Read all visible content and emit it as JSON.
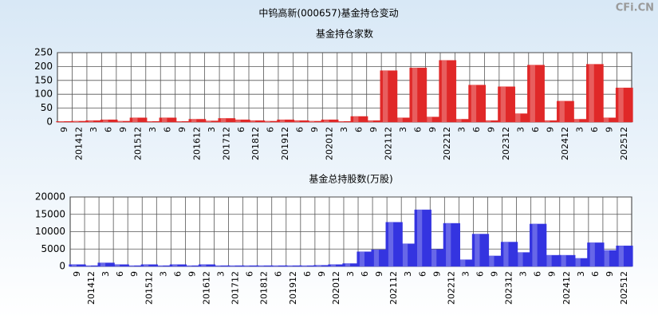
{
  "title": "中钨高新(000657)基金持仓变动",
  "watermark": "CFi.CN",
  "chart_data": [
    {
      "type": "bar",
      "title": "基金持仓家数",
      "categories": [
        "9",
        "201412",
        "3",
        "6",
        "9",
        "201512",
        "3",
        "6",
        "9",
        "201612",
        "3",
        "201712",
        "6",
        "201812",
        "6",
        "201912",
        "6",
        "9",
        "202012",
        "3",
        "6",
        "9",
        "202112",
        "3",
        "6",
        "9",
        "202212",
        "3",
        "6",
        "9",
        "202312",
        "3",
        "6",
        "9",
        "202412",
        "3",
        "6",
        "9",
        "202512"
      ],
      "series": [
        {
          "name": "基金持仓家数",
          "color": "#e02828",
          "values": [
            2,
            3,
            5,
            8,
            3,
            15,
            2,
            15,
            2,
            10,
            4,
            13,
            8,
            5,
            3,
            8,
            5,
            3,
            8,
            2,
            20,
            5,
            185,
            15,
            195,
            18,
            222,
            10,
            133,
            5,
            127,
            30,
            205,
            5,
            75,
            10,
            208,
            15,
            123
          ]
        }
      ],
      "ylim": [
        0,
        250
      ],
      "yticks": [
        0,
        50,
        100,
        150,
        200,
        250
      ],
      "grid": true
    },
    {
      "type": "bar",
      "title": "基金总持股数(万股)",
      "categories": [
        "9",
        "201412",
        "3",
        "6",
        "9",
        "201512",
        "3",
        "6",
        "9",
        "201612",
        "3",
        "201712",
        "6",
        "201812",
        "6",
        "201912",
        "6",
        "9",
        "202012",
        "3",
        "6",
        "9",
        "202112",
        "3",
        "6",
        "9",
        "202212",
        "3",
        "6",
        "9",
        "202312",
        "3",
        "6",
        "9",
        "202412",
        "3",
        "6",
        "9",
        "202512"
      ],
      "series": [
        {
          "name": "基金总持股数(万股)",
          "color": "#3434e0",
          "values": [
            500,
            200,
            1000,
            500,
            200,
            500,
            200,
            500,
            200,
            500,
            200,
            200,
            200,
            200,
            200,
            200,
            200,
            300,
            500,
            800,
            4200,
            4800,
            12700,
            6500,
            16300,
            4900,
            12400,
            1900,
            9300,
            3000,
            7000,
            4000,
            12200,
            3200,
            3200,
            2300,
            6800,
            4600,
            5900
          ]
        }
      ],
      "ylim": [
        0,
        20000
      ],
      "yticks": [
        0,
        5000,
        10000,
        15000,
        20000
      ],
      "grid": true
    }
  ]
}
